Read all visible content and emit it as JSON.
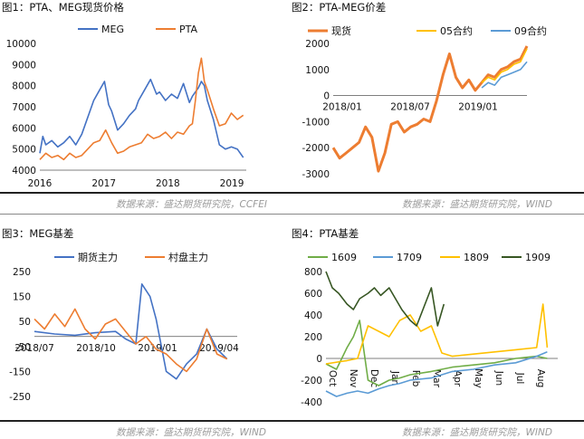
{
  "source_left": "数据来源：盛达期货研究院，CCFEI",
  "source_right": "数据来源：盛达期货研究院，WIND",
  "source_bottom_left": "数据来源：盛达期货研究院，WIND",
  "source_bottom_right": "数据来源：盛达期货研究院，WIND",
  "chart_data": [
    {
      "id": "c1",
      "type": "line",
      "title": "图1：PTA、MEG现货价格",
      "yticks": [
        4000,
        5000,
        6000,
        7000,
        8000,
        9000,
        10000
      ],
      "ylim": [
        4000,
        10000
      ],
      "xticks": [
        "2016",
        "2017",
        "2018",
        "2019"
      ],
      "xlim": [
        2016.0,
        2019.45
      ],
      "grid": false,
      "legend": "top",
      "series": [
        {
          "name": "MEG",
          "color": "#4472c4",
          "x": [
            2016.0,
            2016.05,
            2016.1,
            2016.2,
            2016.3,
            2016.4,
            2016.5,
            2016.6,
            2016.7,
            2016.8,
            2016.9,
            2017.0,
            2017.08,
            2017.15,
            2017.2,
            2017.3,
            2017.4,
            2017.5,
            2017.6,
            2017.65,
            2017.75,
            2017.85,
            2017.95,
            2018.0,
            2018.1,
            2018.2,
            2018.3,
            2018.4,
            2018.5,
            2018.55,
            2018.65,
            2018.7,
            2018.75,
            2018.8,
            2018.9,
            2019.0,
            2019.1,
            2019.2,
            2019.3,
            2019.4
          ],
          "y": [
            4800,
            5600,
            5200,
            5400,
            5100,
            5300,
            5600,
            5200,
            5700,
            6500,
            7300,
            7800,
            8200,
            7100,
            6800,
            5900,
            6200,
            6600,
            6900,
            7300,
            7800,
            8300,
            7600,
            7700,
            7300,
            7600,
            7400,
            8100,
            7200,
            7500,
            7900,
            8200,
            8000,
            7300,
            6400,
            5200,
            5000,
            5100,
            5000,
            4600
          ]
        },
        {
          "name": "PTA",
          "color": "#ed7d31",
          "x": [
            2016.0,
            2016.1,
            2016.2,
            2016.3,
            2016.4,
            2016.5,
            2016.6,
            2016.7,
            2016.8,
            2016.9,
            2017.0,
            2017.1,
            2017.2,
            2017.3,
            2017.4,
            2017.5,
            2017.6,
            2017.7,
            2017.8,
            2017.9,
            2018.0,
            2018.1,
            2018.2,
            2018.3,
            2018.4,
            2018.5,
            2018.55,
            2018.6,
            2018.65,
            2018.7,
            2018.75,
            2018.8,
            2018.9,
            2019.0,
            2019.1,
            2019.2,
            2019.3,
            2019.4
          ],
          "y": [
            4500,
            4800,
            4600,
            4700,
            4500,
            4800,
            4600,
            4700,
            5000,
            5300,
            5400,
            5900,
            5300,
            4800,
            4900,
            5100,
            5200,
            5300,
            5700,
            5500,
            5600,
            5800,
            5500,
            5800,
            5700,
            6100,
            6200,
            7300,
            8600,
            9300,
            8200,
            7800,
            6900,
            6100,
            6200,
            6700,
            6400,
            6600
          ]
        }
      ]
    },
    {
      "id": "c2",
      "type": "line",
      "title": "图2：PTA-MEG价差",
      "yticks": [
        -3000,
        -2000,
        -1000,
        0,
        1000,
        2000
      ],
      "ylim": [
        -3000,
        2000
      ],
      "xticks": [
        "2018/01",
        "2018/07",
        "2019/01"
      ],
      "xlim": [
        2017.85,
        2019.35
      ],
      "grid": false,
      "legend": "top",
      "series": [
        {
          "name": "现货",
          "color": "#ed7d31",
          "x": [
            2017.85,
            2017.9,
            2017.95,
            2018.0,
            2018.05,
            2018.1,
            2018.15,
            2018.2,
            2018.25,
            2018.3,
            2018.35,
            2018.4,
            2018.45,
            2018.5,
            2018.55,
            2018.6,
            2018.65,
            2018.7,
            2018.75,
            2018.8,
            2018.85,
            2018.9,
            2018.95,
            2019.0,
            2019.05,
            2019.1,
            2019.15,
            2019.2,
            2019.25,
            2019.3,
            2019.35
          ],
          "y": [
            -2000,
            -2400,
            -2200,
            -2000,
            -1800,
            -1200,
            -1600,
            -2900,
            -2200,
            -1100,
            -1000,
            -1400,
            -1200,
            -1100,
            -900,
            -1000,
            -200,
            800,
            1600,
            700,
            300,
            600,
            200,
            500,
            800,
            700,
            1000,
            1100,
            1300,
            1400,
            1900
          ]
        },
        {
          "name": "05合约",
          "color": "#ffc000",
          "x": [
            2019.0,
            2019.05,
            2019.1,
            2019.15,
            2019.2,
            2019.25,
            2019.3,
            2019.35
          ],
          "y": [
            500,
            700,
            600,
            900,
            1000,
            1200,
            1300,
            1800
          ]
        },
        {
          "name": "09合约",
          "color": "#5b9bd5",
          "x": [
            2019.0,
            2019.05,
            2019.1,
            2019.15,
            2019.2,
            2019.25,
            2019.3,
            2019.35
          ],
          "y": [
            300,
            500,
            400,
            700,
            800,
            900,
            1000,
            1300
          ]
        }
      ]
    },
    {
      "id": "c3",
      "type": "line",
      "title": "图3：MEG基差",
      "yticks": [
        -250,
        -150,
        -50,
        50,
        150,
        250
      ],
      "ylim": [
        -250,
        250
      ],
      "xticks": [
        "2018/07",
        "2018/10",
        "2019/01",
        "2019/04"
      ],
      "xlim": [
        2018.4,
        2019.4
      ],
      "grid": false,
      "legend": "top",
      "series": [
        {
          "name": "期货主力",
          "color": "#4472c4",
          "x": [
            2018.4,
            2018.5,
            2018.6,
            2018.7,
            2018.8,
            2018.85,
            2018.9,
            2018.93,
            2018.97,
            2019.0,
            2019.05,
            2019.1,
            2019.15,
            2019.2,
            2019.25,
            2019.3,
            2019.35
          ],
          "y": [
            10,
            0,
            -5,
            5,
            10,
            -20,
            -40,
            200,
            150,
            60,
            -150,
            -180,
            -120,
            -80,
            20,
            -60,
            -100
          ]
        },
        {
          "name": "村盘主力",
          "color": "#ed7d31",
          "x": [
            2018.4,
            2018.45,
            2018.5,
            2018.55,
            2018.6,
            2018.65,
            2018.7,
            2018.75,
            2018.8,
            2018.85,
            2018.9,
            2018.95,
            2019.0,
            2019.05,
            2019.1,
            2019.15,
            2019.2,
            2019.25,
            2019.3,
            2019.35
          ],
          "y": [
            60,
            20,
            80,
            30,
            100,
            20,
            -20,
            40,
            60,
            10,
            -40,
            -10,
            -60,
            -80,
            -120,
            -150,
            -100,
            20,
            -80,
            -100
          ]
        }
      ]
    },
    {
      "id": "c4",
      "type": "line",
      "title": "图4：PTA基差",
      "yticks": [
        -400,
        -200,
        0,
        200,
        400,
        600,
        800
      ],
      "ylim": [
        -400,
        800
      ],
      "xticks": [
        "Oct",
        "Nov",
        "Dec",
        "Jan",
        "Feb",
        "Mar",
        "Apr",
        "May",
        "Jun",
        "Jul",
        "Aug"
      ],
      "xlim": [
        0,
        11
      ],
      "grid": false,
      "legend": "top",
      "series": [
        {
          "name": "1609",
          "color": "#70ad47",
          "x": [
            0,
            0.5,
            1,
            1.3,
            1.6,
            2,
            2.5,
            3,
            3.5,
            4,
            5,
            6,
            7,
            8,
            9,
            10,
            10.5
          ],
          "y": [
            -50,
            -100,
            100,
            200,
            350,
            -200,
            -250,
            -200,
            -180,
            -150,
            -120,
            -80,
            -60,
            -40,
            0,
            20,
            0
          ]
        },
        {
          "name": "1709",
          "color": "#5b9bd5",
          "x": [
            0,
            0.5,
            1,
            1.5,
            2,
            2.5,
            3,
            3.5,
            4,
            5,
            6,
            7,
            8,
            9,
            10,
            10.5
          ],
          "y": [
            -300,
            -350,
            -320,
            -300,
            -320,
            -280,
            -250,
            -230,
            -200,
            -180,
            -120,
            -100,
            -60,
            -40,
            20,
            60
          ]
        },
        {
          "name": "1809",
          "color": "#ffc000",
          "x": [
            0,
            1,
            1.5,
            2,
            2.5,
            3,
            3.5,
            4,
            4.5,
            5,
            5.5,
            6,
            7,
            8,
            9,
            10,
            10.3,
            10.5
          ],
          "y": [
            -50,
            -20,
            0,
            300,
            250,
            200,
            350,
            400,
            250,
            300,
            50,
            20,
            40,
            60,
            80,
            100,
            500,
            100
          ]
        },
        {
          "name": "1909",
          "color": "#375623",
          "x": [
            0,
            0.3,
            0.6,
            1,
            1.3,
            1.6,
            2,
            2.3,
            2.6,
            3,
            3.3,
            3.6,
            4,
            4.3,
            4.6,
            5,
            5.3,
            5.6
          ],
          "y": [
            800,
            650,
            600,
            500,
            450,
            550,
            600,
            650,
            580,
            650,
            550,
            450,
            350,
            300,
            450,
            650,
            300,
            500
          ]
        }
      ]
    }
  ]
}
